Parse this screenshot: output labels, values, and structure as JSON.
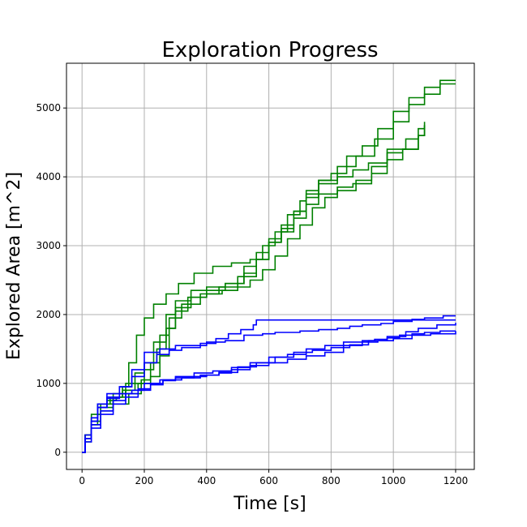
{
  "chart_data": {
    "type": "line",
    "title": "Exploration Progress",
    "xlabel": "Time [s]",
    "ylabel": "Explored Area [m^2]",
    "xlim": [
      -50,
      1260
    ],
    "ylim": [
      -250,
      5650
    ],
    "xticks": [
      0,
      200,
      400,
      600,
      800,
      1000,
      1200
    ],
    "yticks": [
      0,
      1000,
      2000,
      3000,
      4000,
      5000
    ],
    "grid": true,
    "colors": {
      "green": "#008000",
      "blue": "#0000ff",
      "grid": "#b0b0b0"
    },
    "series": [
      {
        "color": "green",
        "points": [
          [
            0,
            0
          ],
          [
            10,
            200
          ],
          [
            30,
            400
          ],
          [
            50,
            650
          ],
          [
            80,
            750
          ],
          [
            110,
            800
          ],
          [
            130,
            950
          ],
          [
            150,
            1300
          ],
          [
            175,
            1700
          ],
          [
            200,
            1950
          ],
          [
            230,
            2150
          ],
          [
            270,
            2300
          ],
          [
            310,
            2450
          ],
          [
            360,
            2600
          ],
          [
            420,
            2700
          ],
          [
            480,
            2750
          ],
          [
            540,
            2800
          ],
          [
            580,
            3000
          ],
          [
            620,
            3200
          ],
          [
            660,
            3450
          ],
          [
            700,
            3650
          ],
          [
            720,
            3800
          ],
          [
            760,
            3950
          ],
          [
            800,
            4050
          ],
          [
            850,
            4300
          ],
          [
            900,
            4450
          ],
          [
            950,
            4700
          ],
          [
            1000,
            4950
          ],
          [
            1050,
            5150
          ],
          [
            1100,
            5300
          ],
          [
            1150,
            5400
          ],
          [
            1200,
            5400
          ]
        ]
      },
      {
        "color": "green",
        "points": [
          [
            0,
            0
          ],
          [
            10,
            250
          ],
          [
            30,
            500
          ],
          [
            50,
            700
          ],
          [
            90,
            800
          ],
          [
            130,
            900
          ],
          [
            170,
            1000
          ],
          [
            200,
            1200
          ],
          [
            230,
            1600
          ],
          [
            270,
            2000
          ],
          [
            300,
            2200
          ],
          [
            350,
            2350
          ],
          [
            400,
            2400
          ],
          [
            460,
            2450
          ],
          [
            520,
            2600
          ],
          [
            560,
            2800
          ],
          [
            600,
            3100
          ],
          [
            640,
            3300
          ],
          [
            680,
            3500
          ],
          [
            720,
            3700
          ],
          [
            760,
            3950
          ],
          [
            820,
            4150
          ],
          [
            880,
            4300
          ],
          [
            940,
            4550
          ],
          [
            1000,
            4800
          ],
          [
            1050,
            5050
          ],
          [
            1100,
            5200
          ],
          [
            1150,
            5350
          ],
          [
            1200,
            5350
          ]
        ]
      },
      {
        "color": "green",
        "points": [
          [
            0,
            0
          ],
          [
            10,
            150
          ],
          [
            30,
            400
          ],
          [
            60,
            600
          ],
          [
            100,
            700
          ],
          [
            150,
            850
          ],
          [
            190,
            1050
          ],
          [
            220,
            1300
          ],
          [
            250,
            1700
          ],
          [
            280,
            1950
          ],
          [
            320,
            2150
          ],
          [
            380,
            2300
          ],
          [
            440,
            2400
          ],
          [
            500,
            2550
          ],
          [
            560,
            2800
          ],
          [
            600,
            3050
          ],
          [
            640,
            3250
          ],
          [
            680,
            3500
          ],
          [
            720,
            3750
          ],
          [
            760,
            3900
          ],
          [
            820,
            4000
          ],
          [
            870,
            4100
          ],
          [
            920,
            4200
          ],
          [
            980,
            4400
          ],
          [
            1040,
            4550
          ],
          [
            1080,
            4700
          ],
          [
            1100,
            4800
          ]
        ]
      },
      {
        "color": "green",
        "points": [
          [
            0,
            0
          ],
          [
            10,
            200
          ],
          [
            30,
            450
          ],
          [
            60,
            650
          ],
          [
            100,
            800
          ],
          [
            140,
            900
          ],
          [
            180,
            1000
          ],
          [
            220,
            1100
          ],
          [
            250,
            1400
          ],
          [
            280,
            1800
          ],
          [
            300,
            2050
          ],
          [
            340,
            2250
          ],
          [
            400,
            2350
          ],
          [
            460,
            2450
          ],
          [
            520,
            2700
          ],
          [
            560,
            2900
          ],
          [
            600,
            3050
          ],
          [
            640,
            3200
          ],
          [
            680,
            3400
          ],
          [
            720,
            3600
          ],
          [
            760,
            3750
          ],
          [
            820,
            3800
          ],
          [
            880,
            3950
          ],
          [
            930,
            4150
          ],
          [
            980,
            4350
          ],
          [
            1030,
            4400
          ],
          [
            1080,
            4600
          ],
          [
            1100,
            4750
          ]
        ]
      },
      {
        "color": "green",
        "points": [
          [
            0,
            0
          ],
          [
            10,
            250
          ],
          [
            30,
            550
          ],
          [
            60,
            700
          ],
          [
            100,
            850
          ],
          [
            140,
            1000
          ],
          [
            170,
            1150
          ],
          [
            200,
            1300
          ],
          [
            240,
            1500
          ],
          [
            270,
            1800
          ],
          [
            300,
            2100
          ],
          [
            350,
            2250
          ],
          [
            400,
            2300
          ],
          [
            450,
            2350
          ],
          [
            500,
            2400
          ],
          [
            540,
            2500
          ],
          [
            580,
            2650
          ],
          [
            620,
            2850
          ],
          [
            660,
            3100
          ],
          [
            700,
            3300
          ],
          [
            740,
            3550
          ],
          [
            780,
            3700
          ],
          [
            820,
            3850
          ],
          [
            870,
            3900
          ],
          [
            930,
            4050
          ],
          [
            980,
            4250
          ],
          [
            1030,
            4400
          ],
          [
            1080,
            4600
          ],
          [
            1100,
            4750
          ]
        ]
      },
      {
        "color": "blue",
        "points": [
          [
            0,
            0
          ],
          [
            10,
            200
          ],
          [
            30,
            450
          ],
          [
            50,
            650
          ],
          [
            80,
            800
          ],
          [
            120,
            950
          ],
          [
            160,
            1100
          ],
          [
            200,
            1300
          ],
          [
            240,
            1420
          ],
          [
            280,
            1480
          ],
          [
            320,
            1520
          ],
          [
            380,
            1580
          ],
          [
            430,
            1650
          ],
          [
            470,
            1720
          ],
          [
            510,
            1780
          ],
          [
            550,
            1850
          ],
          [
            560,
            1920
          ],
          [
            700,
            1920
          ],
          [
            900,
            1920
          ],
          [
            1080,
            1920
          ],
          [
            1200,
            1920
          ]
        ]
      },
      {
        "color": "blue",
        "points": [
          [
            0,
            0
          ],
          [
            10,
            250
          ],
          [
            30,
            500
          ],
          [
            50,
            700
          ],
          [
            80,
            850
          ],
          [
            120,
            950
          ],
          [
            160,
            1200
          ],
          [
            200,
            1450
          ],
          [
            250,
            1500
          ],
          [
            300,
            1550
          ],
          [
            400,
            1600
          ],
          [
            460,
            1620
          ],
          [
            520,
            1700
          ],
          [
            580,
            1720
          ],
          [
            620,
            1740
          ],
          [
            700,
            1760
          ],
          [
            760,
            1780
          ],
          [
            820,
            1800
          ],
          [
            860,
            1830
          ],
          [
            900,
            1850
          ],
          [
            960,
            1870
          ],
          [
            1000,
            1900
          ],
          [
            1060,
            1930
          ],
          [
            1100,
            1950
          ],
          [
            1160,
            1980
          ],
          [
            1200,
            1980
          ]
        ]
      },
      {
        "color": "blue",
        "points": [
          [
            0,
            0
          ],
          [
            10,
            200
          ],
          [
            30,
            450
          ],
          [
            50,
            650
          ],
          [
            80,
            780
          ],
          [
            120,
            850
          ],
          [
            160,
            900
          ],
          [
            200,
            1000
          ],
          [
            250,
            1050
          ],
          [
            300,
            1100
          ],
          [
            360,
            1150
          ],
          [
            420,
            1180
          ],
          [
            480,
            1230
          ],
          [
            540,
            1300
          ],
          [
            600,
            1380
          ],
          [
            660,
            1420
          ],
          [
            720,
            1500
          ],
          [
            780,
            1550
          ],
          [
            840,
            1600
          ],
          [
            900,
            1620
          ],
          [
            940,
            1640
          ],
          [
            980,
            1660
          ],
          [
            1020,
            1700
          ],
          [
            1060,
            1720
          ],
          [
            1100,
            1740
          ],
          [
            1150,
            1760
          ],
          [
            1200,
            1760
          ]
        ]
      },
      {
        "color": "blue",
        "points": [
          [
            0,
            0
          ],
          [
            10,
            150
          ],
          [
            30,
            400
          ],
          [
            60,
            600
          ],
          [
            100,
            750
          ],
          [
            140,
            850
          ],
          [
            180,
            920
          ],
          [
            220,
            980
          ],
          [
            260,
            1050
          ],
          [
            320,
            1080
          ],
          [
            380,
            1120
          ],
          [
            440,
            1160
          ],
          [
            500,
            1240
          ],
          [
            560,
            1300
          ],
          [
            620,
            1380
          ],
          [
            680,
            1450
          ],
          [
            740,
            1480
          ],
          [
            800,
            1520
          ],
          [
            860,
            1560
          ],
          [
            920,
            1620
          ],
          [
            980,
            1680
          ],
          [
            1040,
            1750
          ],
          [
            1080,
            1800
          ],
          [
            1140,
            1850
          ],
          [
            1200,
            1880
          ]
        ]
      },
      {
        "color": "blue",
        "points": [
          [
            0,
            0
          ],
          [
            10,
            200
          ],
          [
            30,
            350
          ],
          [
            60,
            550
          ],
          [
            100,
            700
          ],
          [
            140,
            800
          ],
          [
            180,
            900
          ],
          [
            220,
            1000
          ],
          [
            260,
            1040
          ],
          [
            300,
            1080
          ],
          [
            360,
            1100
          ],
          [
            400,
            1120
          ],
          [
            440,
            1150
          ],
          [
            480,
            1200
          ],
          [
            540,
            1260
          ],
          [
            600,
            1300
          ],
          [
            660,
            1350
          ],
          [
            720,
            1400
          ],
          [
            780,
            1450
          ],
          [
            840,
            1550
          ],
          [
            900,
            1600
          ],
          [
            950,
            1620
          ],
          [
            1000,
            1650
          ],
          [
            1060,
            1700
          ],
          [
            1120,
            1720
          ],
          [
            1200,
            1760
          ]
        ]
      }
    ]
  }
}
